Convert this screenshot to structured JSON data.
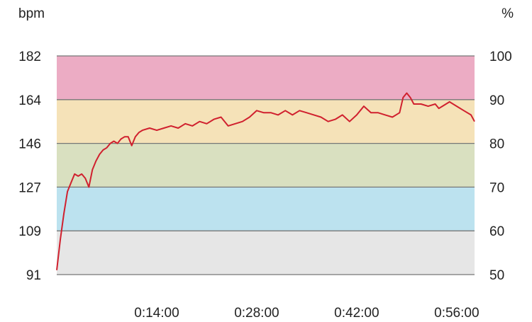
{
  "chart_data": {
    "type": "line",
    "left_unit": "bpm",
    "right_unit": "%",
    "y_left_ticks": [
      "182",
      "164",
      "146",
      "127",
      "109",
      "91"
    ],
    "y_right_ticks": [
      "100",
      "90",
      "80",
      "70",
      "60",
      "50"
    ],
    "ylim_percent": [
      50,
      100
    ],
    "x_ticks": [
      {
        "t": 14,
        "label": "0:14:00"
      },
      {
        "t": 28,
        "label": "0:28:00"
      },
      {
        "t": 42,
        "label": "0:42:00"
      },
      {
        "t": 56,
        "label": "0:56:00"
      }
    ],
    "xlim_minutes": [
      0,
      58.5
    ],
    "grid": true,
    "zones": [
      {
        "from": 90,
        "to": 100,
        "color": "#ecacc4"
      },
      {
        "from": 80,
        "to": 90,
        "color": "#f5e2b8"
      },
      {
        "from": 70,
        "to": 80,
        "color": "#d9e0c0"
      },
      {
        "from": 60,
        "to": 70,
        "color": "#bce2ef"
      },
      {
        "from": 50,
        "to": 60,
        "color": "#e6e6e6"
      }
    ],
    "line_color": "#d0202e",
    "series": [
      {
        "x": [
          0,
          0.5,
          1,
          1.5,
          2,
          2.5,
          3,
          3.5,
          4,
          4.5,
          5,
          5.5,
          6,
          6.5,
          7,
          7.5,
          8,
          8.5,
          9,
          9.5,
          10,
          10.5,
          11,
          11.5,
          12,
          13,
          14,
          15,
          16,
          17,
          18,
          19,
          20,
          21,
          22,
          23,
          24,
          25,
          26,
          27,
          28,
          29,
          30,
          31,
          32,
          33,
          34,
          35,
          36,
          37,
          38,
          39,
          40,
          41,
          42,
          43,
          44,
          45,
          46,
          47,
          48,
          48.5,
          49,
          49.5,
          50,
          51,
          52,
          53,
          53.5,
          54,
          55,
          56,
          57,
          58,
          58.5
        ],
        "percent": [
          51,
          58,
          64,
          69,
          71,
          73,
          72.5,
          73,
          72,
          70,
          74,
          76,
          77.5,
          78.5,
          79,
          80,
          80.5,
          80,
          81,
          81.5,
          81.5,
          79.5,
          81.5,
          82.5,
          83,
          83.5,
          83,
          83.5,
          84,
          83.5,
          84.5,
          84,
          85,
          84.5,
          85.5,
          86,
          84,
          84.5,
          85,
          86,
          87.5,
          87,
          87,
          86.5,
          87.5,
          86.5,
          87.5,
          87,
          86.5,
          86,
          85,
          85.5,
          86.5,
          85,
          86.5,
          88.5,
          87,
          87,
          86.5,
          86,
          87,
          90.5,
          91.5,
          90.5,
          89,
          89,
          88.5,
          89,
          88,
          88.5,
          89.5,
          88.5,
          87.5,
          86.5,
          85
        ]
      }
    ]
  }
}
